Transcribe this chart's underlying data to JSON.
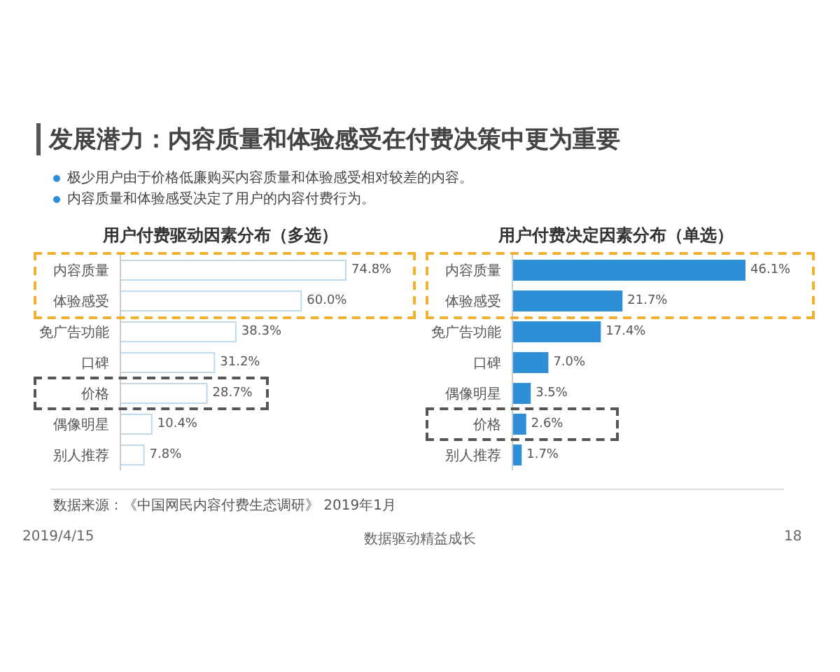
{
  "chart_data": [
    {
      "type": "bar",
      "orientation": "horizontal",
      "title": "用户付费驱动因素分布（多选）",
      "categories": [
        "内容质量",
        "体验感受",
        "免广告功能",
        "口碑",
        "价格",
        "偶像明星",
        "别人推荐"
      ],
      "values": [
        74.8,
        60.0,
        38.3,
        31.2,
        28.7,
        10.4,
        7.8
      ],
      "value_labels": [
        "74.8%",
        "60.0%",
        "38.3%",
        "31.2%",
        "28.7%",
        "10.4%",
        "7.8%"
      ],
      "color": "#ffffff",
      "annotations": [
        "发展潜力：内容质量和体验感受在付费决策中更为重要",
        "极少用户由于价格低廉购买内容质量和体验感受相对较差的内容。",
        "内容质量和体验感受决定了用户的内容付费行为。",
        "数据来源：《中国网民内容付费生态调研》 2019年1月",
        "2019/4/15",
        "数据驱动精益成长",
        "18"
      ]
    },
    {
      "type": "bar",
      "orientation": "horizontal",
      "title": "用户付费决定因素分布（单选）",
      "categories": [
        "内容质量",
        "体验感受",
        "免广告功能",
        "口碑",
        "偶像明星",
        "价格",
        "别人推荐"
      ],
      "values": [
        46.1,
        21.7,
        17.4,
        7.0,
        3.5,
        2.6,
        1.7
      ],
      "value_labels": [
        "46.1%",
        "21.7%",
        "17.4%",
        "7.0%",
        "3.5%",
        "2.6%",
        "1.7%"
      ],
      "color": "#2e8fd8"
    }
  ]
}
